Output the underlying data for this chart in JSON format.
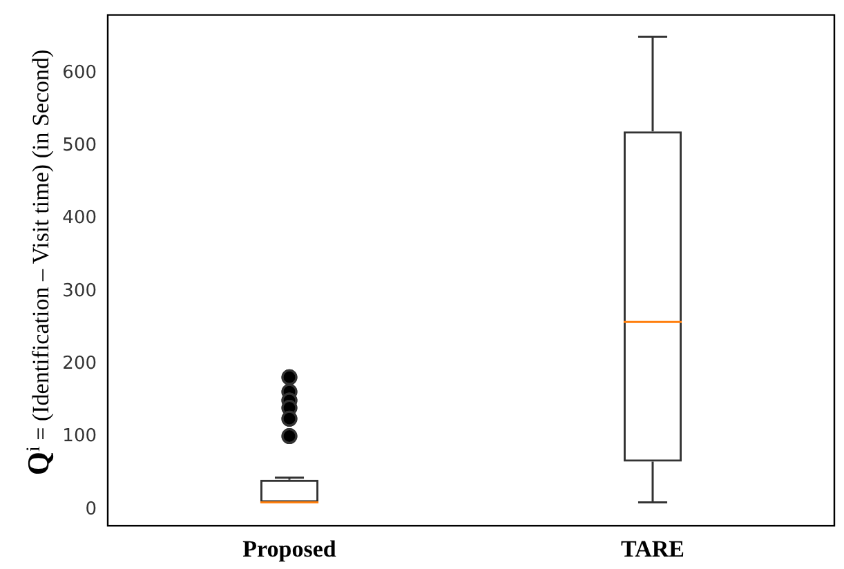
{
  "chart_data": {
    "type": "box",
    "ylabel": "Q$^{i}$ = (Identification – Visit time) (in Second)",
    "categories": [
      "Proposed",
      "TARE"
    ],
    "boxes": [
      {
        "low": 10,
        "q1": 10,
        "median": 10,
        "q3": 41,
        "high": 44,
        "outliers": [
          182,
          162,
          150,
          140,
          125,
          101
        ]
      },
      {
        "low": 10,
        "q1": 66,
        "median": 258,
        "q3": 520,
        "high": 650
      }
    ],
    "color": "#333333",
    "ylim": [
      -22,
      680
    ],
    "yticks": [
      0,
      100,
      200,
      300,
      400,
      500,
      600
    ],
    "grid": false,
    "legend": false,
    "marker": "circle"
  }
}
